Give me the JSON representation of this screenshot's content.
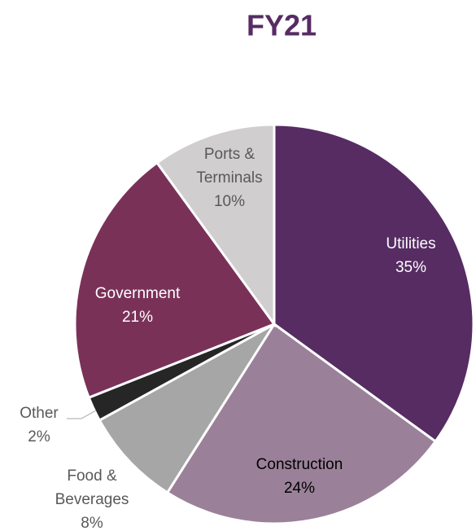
{
  "chart_data": {
    "type": "pie",
    "title": "FY21",
    "categories": [
      "Utilities",
      "Construction",
      "Food & Beverages",
      "Other",
      "Government",
      "Ports & Terminals"
    ],
    "values": [
      35,
      24,
      8,
      2,
      21,
      10
    ],
    "value_labels": [
      "35%",
      "24%",
      "8%",
      "2%",
      "21%",
      "10%"
    ],
    "colors": [
      "#562c63",
      "#9a8199",
      "#a6a6a6",
      "#262626",
      "#7a3158",
      "#d0cece"
    ]
  }
}
